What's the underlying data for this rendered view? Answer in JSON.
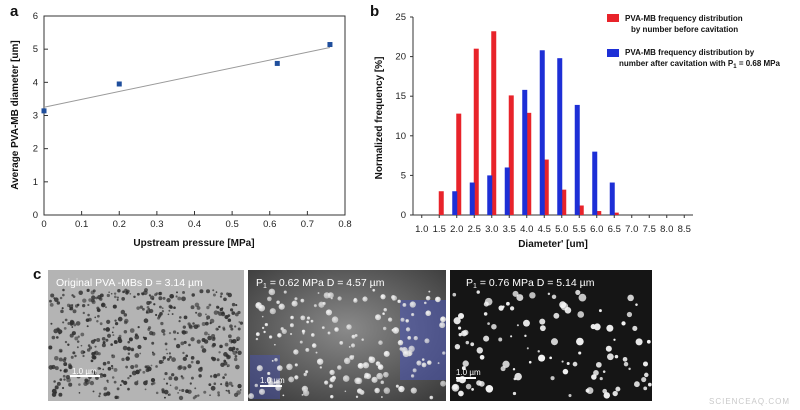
{
  "panels": {
    "a": "a",
    "b": "b",
    "c": "c"
  },
  "chart_data": [
    {
      "panel": "a",
      "type": "scatter",
      "title": "",
      "xlabel": "Upstream pressure [MPa]",
      "ylabel": "Average PVA-MB diameter [um]",
      "xlim": [
        0,
        0.8
      ],
      "ylim": [
        0,
        6
      ],
      "xticks": [
        "0",
        "0.1",
        "0.2",
        "0.3",
        "0.4",
        "0.5",
        "0.6",
        "0.7",
        "0.8"
      ],
      "yticks": [
        "0",
        "1",
        "2",
        "3",
        "4",
        "5",
        "6"
      ],
      "points": [
        {
          "x": 0,
          "y": 3.14
        },
        {
          "x": 0.2,
          "y": 3.95
        },
        {
          "x": 0.62,
          "y": 4.57
        },
        {
          "x": 0.76,
          "y": 5.14
        }
      ],
      "fit_line": {
        "x": [
          0,
          0.76
        ],
        "y": [
          3.25,
          5.05
        ]
      },
      "marker_color": "#1f4e9c",
      "grid": false
    },
    {
      "panel": "b",
      "type": "bar",
      "title": "",
      "xlabel": "Diameter' [um]",
      "ylabel": "Normalized frequency [%]",
      "xlim": [
        0.75,
        8.75
      ],
      "ylim": [
        0,
        25
      ],
      "xticks": [
        "1.0",
        "1.5",
        "2.0",
        "2.5",
        "3.0",
        "3.5",
        "4.0",
        "4.5",
        "5.0",
        "5.5",
        "6.0",
        "6.5",
        "7.0",
        "7.5",
        "8.0",
        "8.5"
      ],
      "yticks": [
        "0",
        "5",
        "10",
        "15",
        "20",
        "25"
      ],
      "legend_position": "top-right",
      "series": [
        {
          "name": "PVA-MB frequency distribution by number before cavitation",
          "legend_lines": [
            "PVA-MB frequency distribution",
            "by number before cavitation"
          ],
          "color": "#e8232a",
          "x": [
            1.5,
            2.0,
            2.5,
            3.0,
            3.5,
            4.0,
            4.5,
            5.0,
            5.5,
            6.0,
            6.5
          ],
          "values": [
            3.0,
            12.8,
            21.0,
            23.2,
            15.1,
            12.9,
            7.0,
            3.2,
            1.2,
            0.5,
            0.3
          ]
        },
        {
          "name": "PVA-MB frequency distribution by number after cavitation with P1 = 0.68 MPa",
          "legend_lines": [
            "PVA-MB frequency distribution by",
            "number after cavitation with P",
            "1",
            " = 0.68 MPa"
          ],
          "color": "#1d2fd6",
          "x": [
            2.0,
            2.5,
            3.0,
            3.5,
            4.0,
            4.5,
            5.0,
            5.5,
            6.0,
            6.5
          ],
          "values": [
            3.0,
            4.1,
            5.0,
            6.0,
            15.8,
            20.8,
            19.8,
            13.9,
            8.0,
            4.1
          ]
        }
      ]
    }
  ],
  "micrographs": [
    {
      "caption_main": "Original PVA -MBs D = 3.14 µm",
      "caption_sub": "",
      "caption_rest": "",
      "scale": "1.0 µm"
    },
    {
      "caption_main": "P",
      "caption_sub": "1",
      "caption_rest": " = 0.62 MPa D = 4.57 µm",
      "scale": "1.0 µm"
    },
    {
      "caption_main": "P",
      "caption_sub": "1",
      "caption_rest": " = 0.76 MPa D = 5.14 µm",
      "scale": "1.0 µm"
    }
  ],
  "watermark": "SCIENCEAQ.COM"
}
